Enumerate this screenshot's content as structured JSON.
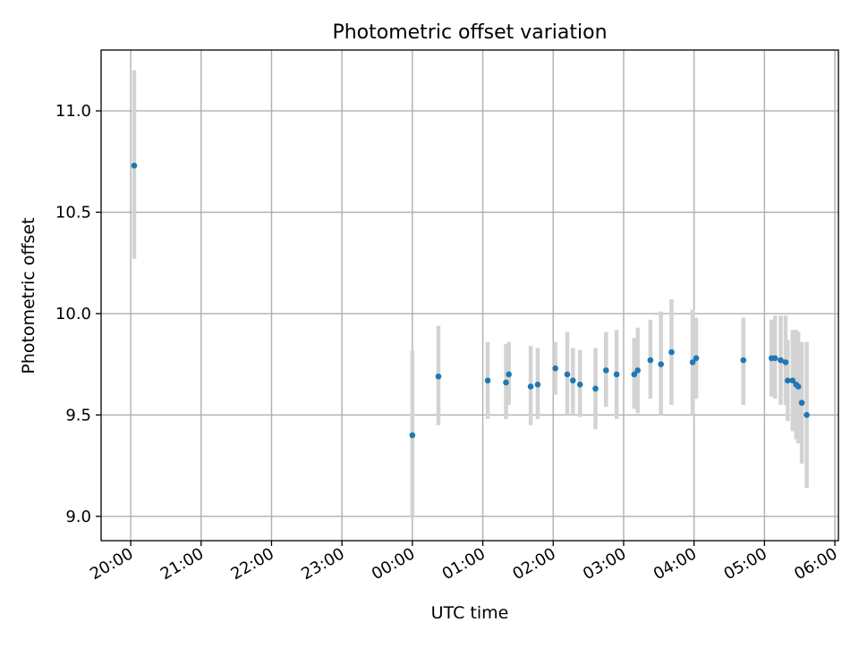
{
  "chart_data": {
    "type": "scatter",
    "title": "Photometric offset variation",
    "xlabel": "UTC time",
    "ylabel": "Photometric offset",
    "grid": true,
    "x_unit": "hours",
    "xlim": [
      19.58,
      30.05
    ],
    "ylim": [
      8.88,
      11.3
    ],
    "x_ticks": [
      {
        "value": 20,
        "label": "20:00"
      },
      {
        "value": 21,
        "label": "21:00"
      },
      {
        "value": 22,
        "label": "22:00"
      },
      {
        "value": 23,
        "label": "23:00"
      },
      {
        "value": 24,
        "label": "00:00"
      },
      {
        "value": 25,
        "label": "01:00"
      },
      {
        "value": 26,
        "label": "02:00"
      },
      {
        "value": 27,
        "label": "03:00"
      },
      {
        "value": 28,
        "label": "04:00"
      },
      {
        "value": 29,
        "label": "05:00"
      },
      {
        "value": 30,
        "label": "06:00"
      }
    ],
    "y_ticks": [
      {
        "value": 9.0,
        "label": "9.0"
      },
      {
        "value": 9.5,
        "label": "9.5"
      },
      {
        "value": 10.0,
        "label": "10.0"
      },
      {
        "value": 10.5,
        "label": "10.5"
      },
      {
        "value": 11.0,
        "label": "11.0"
      }
    ],
    "colors": {
      "points": "#1f77b4",
      "errorbars": "#d3d3d3",
      "grid": "#b0b0b0"
    },
    "series": [
      {
        "points": [
          {
            "x": 20.05,
            "y": 10.73,
            "lo": 10.27,
            "hi": 11.2
          },
          {
            "x": 24.0,
            "y": 9.4,
            "lo": 9.0,
            "hi": 9.82
          },
          {
            "x": 24.37,
            "y": 9.69,
            "lo": 9.45,
            "hi": 9.94
          },
          {
            "x": 25.07,
            "y": 9.67,
            "lo": 9.48,
            "hi": 9.86
          },
          {
            "x": 25.33,
            "y": 9.66,
            "lo": 9.48,
            "hi": 9.85
          },
          {
            "x": 25.37,
            "y": 9.7,
            "lo": 9.55,
            "hi": 9.86
          },
          {
            "x": 25.68,
            "y": 9.64,
            "lo": 9.45,
            "hi": 9.84
          },
          {
            "x": 25.78,
            "y": 9.65,
            "lo": 9.48,
            "hi": 9.83
          },
          {
            "x": 26.03,
            "y": 9.73,
            "lo": 9.6,
            "hi": 9.86
          },
          {
            "x": 26.2,
            "y": 9.7,
            "lo": 9.5,
            "hi": 9.91
          },
          {
            "x": 26.28,
            "y": 9.67,
            "lo": 9.5,
            "hi": 9.83
          },
          {
            "x": 26.38,
            "y": 9.65,
            "lo": 9.49,
            "hi": 9.82
          },
          {
            "x": 26.6,
            "y": 9.63,
            "lo": 9.43,
            "hi": 9.83
          },
          {
            "x": 26.75,
            "y": 9.72,
            "lo": 9.54,
            "hi": 9.91
          },
          {
            "x": 26.9,
            "y": 9.7,
            "lo": 9.48,
            "hi": 9.92
          },
          {
            "x": 27.15,
            "y": 9.7,
            "lo": 9.53,
            "hi": 9.88
          },
          {
            "x": 27.2,
            "y": 9.72,
            "lo": 9.51,
            "hi": 9.93
          },
          {
            "x": 27.38,
            "y": 9.77,
            "lo": 9.58,
            "hi": 9.97
          },
          {
            "x": 27.53,
            "y": 9.75,
            "lo": 9.5,
            "hi": 10.01
          },
          {
            "x": 27.68,
            "y": 9.81,
            "lo": 9.55,
            "hi": 10.07
          },
          {
            "x": 27.98,
            "y": 9.76,
            "lo": 9.5,
            "hi": 10.02
          },
          {
            "x": 28.03,
            "y": 9.78,
            "lo": 9.58,
            "hi": 9.98
          },
          {
            "x": 28.7,
            "y": 9.77,
            "lo": 9.55,
            "hi": 9.98
          },
          {
            "x": 29.1,
            "y": 9.78,
            "lo": 9.59,
            "hi": 9.97
          },
          {
            "x": 29.15,
            "y": 9.78,
            "lo": 9.58,
            "hi": 9.99
          },
          {
            "x": 29.23,
            "y": 9.77,
            "lo": 9.55,
            "hi": 9.99
          },
          {
            "x": 29.3,
            "y": 9.76,
            "lo": 9.55,
            "hi": 9.99
          },
          {
            "x": 29.33,
            "y": 9.67,
            "lo": 9.47,
            "hi": 9.87
          },
          {
            "x": 29.4,
            "y": 9.67,
            "lo": 9.42,
            "hi": 9.92
          },
          {
            "x": 29.45,
            "y": 9.65,
            "lo": 9.38,
            "hi": 9.92
          },
          {
            "x": 29.48,
            "y": 9.64,
            "lo": 9.36,
            "hi": 9.91
          },
          {
            "x": 29.53,
            "y": 9.56,
            "lo": 9.26,
            "hi": 9.86
          },
          {
            "x": 29.6,
            "y": 9.5,
            "lo": 9.14,
            "hi": 9.86
          }
        ]
      }
    ]
  }
}
